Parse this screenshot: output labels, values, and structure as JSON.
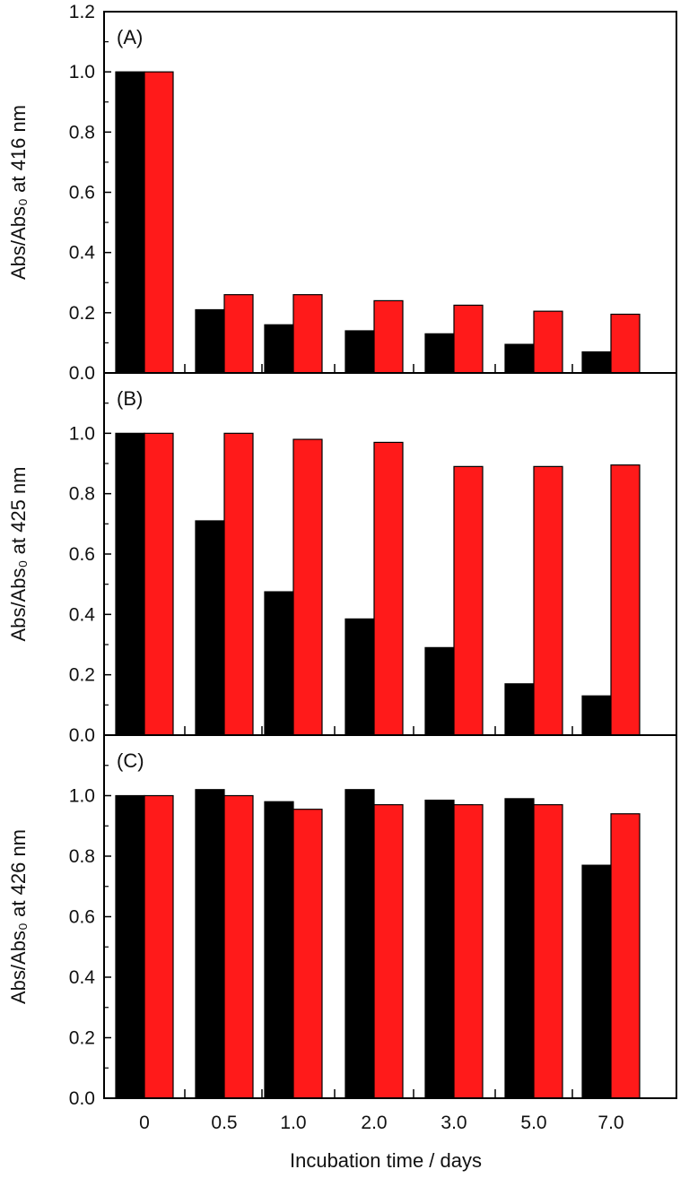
{
  "colors": {
    "series_a": "#000000",
    "series_b": "#ff1a1a",
    "frame": "#000000"
  },
  "chart_data": [
    {
      "type": "bar",
      "panel_label": "(A)",
      "categories": [
        "0",
        "0.5",
        "1.0",
        "2.0",
        "3.0",
        "5.0",
        "7.0"
      ],
      "series": [
        {
          "values": [
            1.0,
            0.21,
            0.16,
            0.14,
            0.13,
            0.095,
            0.07
          ]
        },
        {
          "values": [
            1.0,
            0.26,
            0.26,
            0.24,
            0.225,
            0.205,
            0.195
          ]
        }
      ],
      "ylabel": "Abs/Abs₀ at 416 nm",
      "ylim": [
        0,
        1.2
      ],
      "yticks": [
        "0.0",
        "0.2",
        "0.4",
        "0.6",
        "0.8",
        "1.0",
        "1.2"
      ]
    },
    {
      "type": "bar",
      "panel_label": "(B)",
      "categories": [
        "0",
        "0.5",
        "1.0",
        "2.0",
        "3.0",
        "5.0",
        "7.0"
      ],
      "series": [
        {
          "values": [
            1.0,
            0.71,
            0.475,
            0.385,
            0.29,
            0.17,
            0.13
          ]
        },
        {
          "values": [
            1.0,
            1.0,
            0.98,
            0.97,
            0.89,
            0.89,
            0.895
          ]
        }
      ],
      "ylabel": "Abs/Abs₀ at 425 nm",
      "ylim": [
        0,
        1.2
      ],
      "yticks": [
        "0.0",
        "0.2",
        "0.4",
        "0.6",
        "0.8",
        "1.0"
      ]
    },
    {
      "type": "bar",
      "panel_label": "(C)",
      "categories": [
        "0",
        "0.5",
        "1.0",
        "2.0",
        "3.0",
        "5.0",
        "7.0"
      ],
      "series": [
        {
          "values": [
            1.0,
            1.02,
            0.98,
            1.02,
            0.985,
            0.99,
            0.77
          ]
        },
        {
          "values": [
            1.0,
            1.0,
            0.955,
            0.97,
            0.97,
            0.97,
            0.94
          ]
        }
      ],
      "ylabel": "Abs/Abs₀ at 426 nm",
      "ylim": [
        0,
        1.2
      ],
      "yticks": [
        "0.0",
        "0.2",
        "0.4",
        "0.6",
        "0.8",
        "1.0"
      ]
    }
  ],
  "xlabel": "Incubation time / days"
}
